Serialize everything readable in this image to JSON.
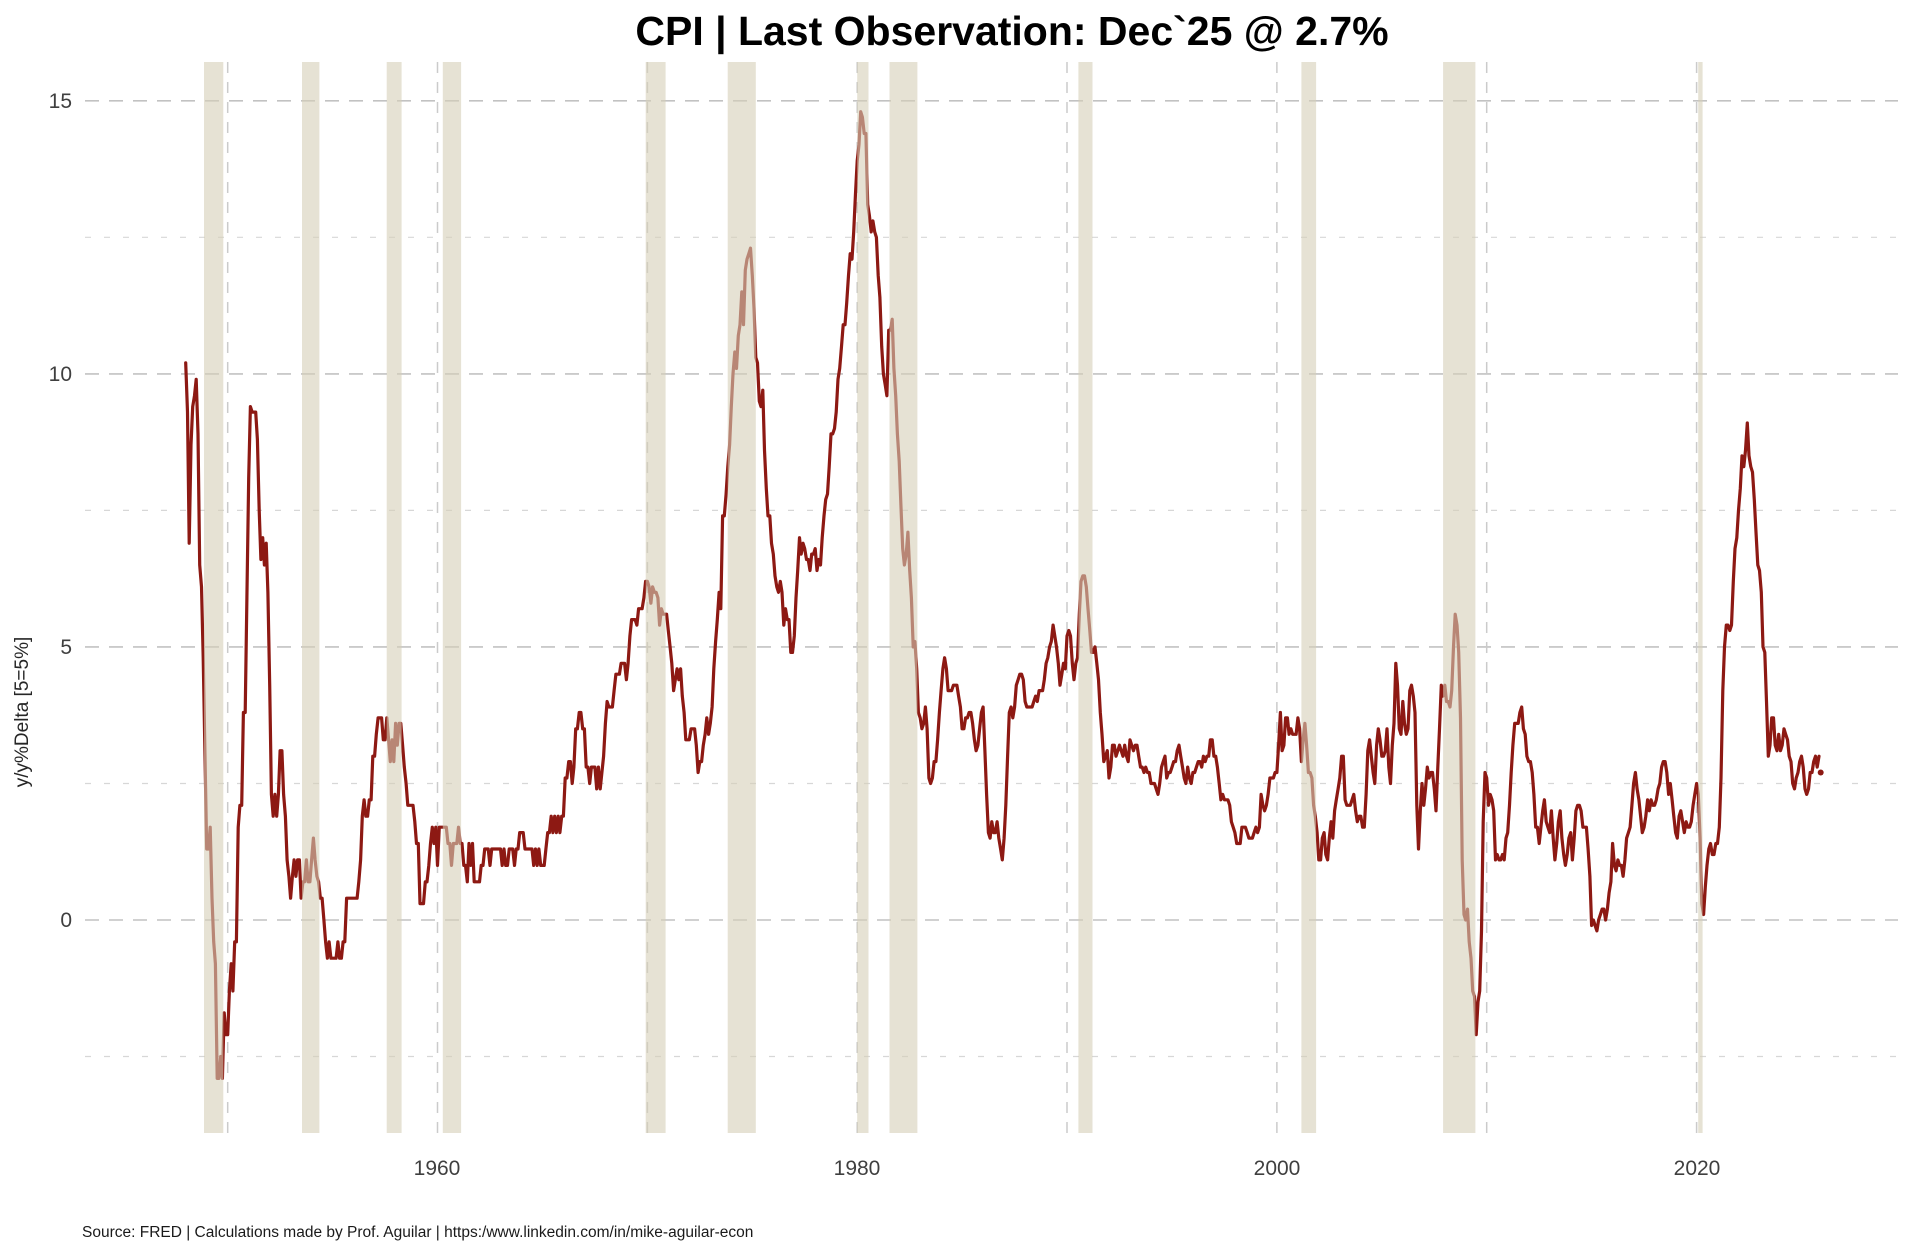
{
  "footer": {
    "source_note": "Source: FRED | Calculations made by Prof. Aguilar | https:/www.linkedin.com/in/mike-aguilar-econ"
  },
  "colors": {
    "line": "#8d1913",
    "recession_band": "#d6cfb8",
    "recession_band_opacity": 0.6,
    "grid_major": "#c2c2c2",
    "grid_minor": "#d7d7d7",
    "grid_vertical": "#cbcbcb",
    "axis_text": "#3f3f3f",
    "title_text": "#000000"
  },
  "chart_data": {
    "type": "line",
    "title": "CPI | Last Observation: Dec`25 @ 2.7%",
    "xlabel": "",
    "ylabel": "y/y%Delta [5=5%]",
    "legend": "none",
    "grid": "dashed",
    "xlim": [
      1943.2,
      2029.6
    ],
    "ylim": [
      -3.9,
      15.71
    ],
    "y_ticks": [
      0,
      5,
      10,
      15
    ],
    "y_minor_gridlines": [
      -2.5,
      2.5,
      7.5,
      12.5
    ],
    "x_ticks": [
      1960,
      1980,
      2000,
      2020
    ],
    "x_gridlines": [
      1950,
      1960,
      1970,
      1980,
      1990,
      2000,
      2010,
      2020
    ],
    "last_observation": {
      "label": "Dec`25",
      "value": 2.7
    },
    "recession_bands": [
      [
        1948.87,
        1949.79
      ],
      [
        1953.54,
        1954.37
      ],
      [
        1957.58,
        1958.29
      ],
      [
        1960.25,
        1961.12
      ],
      [
        1969.92,
        1970.87
      ],
      [
        1973.83,
        1975.17
      ],
      [
        1980.0,
        1980.54
      ],
      [
        1981.54,
        1982.87
      ],
      [
        1990.54,
        1991.21
      ],
      [
        2001.17,
        2001.87
      ],
      [
        2007.92,
        2009.46
      ],
      [
        2020.08,
        2020.29
      ]
    ],
    "series": [
      {
        "name": "CPI y/y % change",
        "start": "1948-01",
        "frequency": "monthly",
        "color": "#8d1913",
        "values": [
          10.2,
          9.3,
          6.9,
          8.7,
          9.4,
          9.6,
          9.9,
          8.9,
          6.5,
          6.1,
          4.8,
          3.0,
          1.3,
          1.3,
          1.7,
          0.4,
          -0.4,
          -0.8,
          -2.9,
          -2.9,
          -2.5,
          -2.9,
          -1.7,
          -2.1,
          -2.1,
          -1.3,
          -0.8,
          -1.3,
          -0.4,
          -0.4,
          1.7,
          2.1,
          2.1,
          3.8,
          3.8,
          5.9,
          8.1,
          9.4,
          9.3,
          9.3,
          9.3,
          8.8,
          7.5,
          6.6,
          7.0,
          6.5,
          6.9,
          6.0,
          4.3,
          2.3,
          1.9,
          2.3,
          1.9,
          2.3,
          3.1,
          3.1,
          2.3,
          1.9,
          1.1,
          0.8,
          0.4,
          0.8,
          1.1,
          0.8,
          1.1,
          1.1,
          0.4,
          0.7,
          0.7,
          1.1,
          0.7,
          0.7,
          1.1,
          1.5,
          1.1,
          0.8,
          0.7,
          0.4,
          0.4,
          0.0,
          -0.4,
          -0.7,
          -0.4,
          -0.7,
          -0.7,
          -0.7,
          -0.7,
          -0.4,
          -0.7,
          -0.7,
          -0.4,
          -0.4,
          0.4,
          0.4,
          0.4,
          0.4,
          0.4,
          0.4,
          0.4,
          0.7,
          1.1,
          1.9,
          2.2,
          1.9,
          1.9,
          2.2,
          2.2,
          3.0,
          3.0,
          3.4,
          3.7,
          3.7,
          3.7,
          3.3,
          3.3,
          3.7,
          3.3,
          2.9,
          3.3,
          2.9,
          3.6,
          3.2,
          3.6,
          3.6,
          3.2,
          2.8,
          2.5,
          2.1,
          2.1,
          2.1,
          2.1,
          1.8,
          1.4,
          1.4,
          0.3,
          0.3,
          0.3,
          0.7,
          0.7,
          1.0,
          1.4,
          1.7,
          1.4,
          1.7,
          1.0,
          1.7,
          1.7,
          1.7,
          1.7,
          1.7,
          1.4,
          1.4,
          1.0,
          1.4,
          1.4,
          1.4,
          1.7,
          1.4,
          1.4,
          1.0,
          1.0,
          0.7,
          1.4,
          1.0,
          1.4,
          0.7,
          0.7,
          0.7,
          0.7,
          1.0,
          1.0,
          1.3,
          1.3,
          1.3,
          1.0,
          1.3,
          1.3,
          1.3,
          1.3,
          1.3,
          1.3,
          1.0,
          1.3,
          1.0,
          1.0,
          1.3,
          1.3,
          1.3,
          1.0,
          1.3,
          1.3,
          1.6,
          1.6,
          1.6,
          1.3,
          1.3,
          1.3,
          1.3,
          1.3,
          1.0,
          1.3,
          1.0,
          1.3,
          1.0,
          1.0,
          1.0,
          1.3,
          1.6,
          1.6,
          1.9,
          1.6,
          1.9,
          1.6,
          1.9,
          1.6,
          1.9,
          1.9,
          2.6,
          2.6,
          2.9,
          2.9,
          2.5,
          2.8,
          3.5,
          3.5,
          3.8,
          3.8,
          3.5,
          3.5,
          2.8,
          2.8,
          2.5,
          2.8,
          2.8,
          2.8,
          2.4,
          2.8,
          2.4,
          2.7,
          3.0,
          3.6,
          4.0,
          3.9,
          3.9,
          3.9,
          4.2,
          4.5,
          4.5,
          4.5,
          4.7,
          4.7,
          4.7,
          4.4,
          4.7,
          5.2,
          5.5,
          5.5,
          5.5,
          5.4,
          5.7,
          5.7,
          5.7,
          5.9,
          6.2,
          6.2,
          6.1,
          5.8,
          6.1,
          6.0,
          6.0,
          5.9,
          5.4,
          5.7,
          5.6,
          5.6,
          5.6,
          5.3,
          5.0,
          4.7,
          4.2,
          4.4,
          4.6,
          4.4,
          4.6,
          4.1,
          3.8,
          3.3,
          3.3,
          3.3,
          3.5,
          3.5,
          3.5,
          3.2,
          2.7,
          2.9,
          2.9,
          3.2,
          3.4,
          3.7,
          3.4,
          3.6,
          3.9,
          4.6,
          5.1,
          5.5,
          6.0,
          5.7,
          7.4,
          7.4,
          7.8,
          8.3,
          8.7,
          9.4,
          10.0,
          10.4,
          10.1,
          10.7,
          10.9,
          11.5,
          10.9,
          11.9,
          12.1,
          12.2,
          12.3,
          11.8,
          11.2,
          10.3,
          10.2,
          9.5,
          9.4,
          9.7,
          8.6,
          7.9,
          7.4,
          7.4,
          6.9,
          6.7,
          6.3,
          6.1,
          6.0,
          6.2,
          6.0,
          5.4,
          5.7,
          5.5,
          5.5,
          4.9,
          4.9,
          5.2,
          5.9,
          6.4,
          7.0,
          6.7,
          6.9,
          6.8,
          6.6,
          6.6,
          6.4,
          6.7,
          6.7,
          6.8,
          6.4,
          6.6,
          6.5,
          7.0,
          7.4,
          7.7,
          7.8,
          8.3,
          8.9,
          8.9,
          9.0,
          9.3,
          9.9,
          10.1,
          10.5,
          10.9,
          10.9,
          11.3,
          11.8,
          12.2,
          12.1,
          12.6,
          13.3,
          13.9,
          14.2,
          14.8,
          14.7,
          14.4,
          14.4,
          13.1,
          12.9,
          12.6,
          12.8,
          12.6,
          12.5,
          11.8,
          11.4,
          10.5,
          10.0,
          9.8,
          9.6,
          10.8,
          10.8,
          11.0,
          10.1,
          9.6,
          8.9,
          8.4,
          7.6,
          6.8,
          6.5,
          6.7,
          7.1,
          6.4,
          5.9,
          5.0,
          5.1,
          4.6,
          3.8,
          3.7,
          3.5,
          3.6,
          3.9,
          3.5,
          2.6,
          2.5,
          2.6,
          2.9,
          2.9,
          3.3,
          3.8,
          4.2,
          4.6,
          4.8,
          4.6,
          4.2,
          4.2,
          4.2,
          4.3,
          4.3,
          4.3,
          4.1,
          3.9,
          3.5,
          3.5,
          3.7,
          3.7,
          3.8,
          3.8,
          3.6,
          3.3,
          3.1,
          3.2,
          3.5,
          3.8,
          3.9,
          3.1,
          2.3,
          1.6,
          1.5,
          1.8,
          1.6,
          1.6,
          1.8,
          1.5,
          1.3,
          1.1,
          1.5,
          2.1,
          3.0,
          3.8,
          3.9,
          3.7,
          3.9,
          4.3,
          4.4,
          4.5,
          4.5,
          4.4,
          4.0,
          3.9,
          3.9,
          3.9,
          3.9,
          4.0,
          4.1,
          4.0,
          4.2,
          4.2,
          4.2,
          4.4,
          4.7,
          4.8,
          5.0,
          5.1,
          5.4,
          5.2,
          5.0,
          4.7,
          4.3,
          4.5,
          4.7,
          4.6,
          5.2,
          5.3,
          5.2,
          4.7,
          4.4,
          4.7,
          4.8,
          5.6,
          6.2,
          6.3,
          6.3,
          6.1,
          5.7,
          5.3,
          4.9,
          4.9,
          5.0,
          4.7,
          4.4,
          3.8,
          3.4,
          2.9,
          3.0,
          3.1,
          2.6,
          2.8,
          3.2,
          3.2,
          3.0,
          3.1,
          3.2,
          3.1,
          3.0,
          3.2,
          3.0,
          2.9,
          3.3,
          3.2,
          3.1,
          3.2,
          3.2,
          3.0,
          2.8,
          2.8,
          2.7,
          2.8,
          2.7,
          2.7,
          2.5,
          2.5,
          2.5,
          2.4,
          2.3,
          2.5,
          2.8,
          2.9,
          3.0,
          2.6,
          2.7,
          2.7,
          2.8,
          2.9,
          2.9,
          3.1,
          3.2,
          3.0,
          2.8,
          2.6,
          2.5,
          2.8,
          2.6,
          2.5,
          2.7,
          2.7,
          2.8,
          2.9,
          2.9,
          2.8,
          3.0,
          2.9,
          3.0,
          3.0,
          3.3,
          3.3,
          3.0,
          3.0,
          2.8,
          2.5,
          2.2,
          2.3,
          2.2,
          2.2,
          2.2,
          2.1,
          1.8,
          1.7,
          1.6,
          1.4,
          1.4,
          1.4,
          1.7,
          1.7,
          1.7,
          1.6,
          1.5,
          1.5,
          1.5,
          1.6,
          1.7,
          1.6,
          1.7,
          2.3,
          2.1,
          2.0,
          2.1,
          2.3,
          2.6,
          2.6,
          2.6,
          2.7,
          2.7,
          3.2,
          3.8,
          3.1,
          3.2,
          3.7,
          3.7,
          3.4,
          3.5,
          3.4,
          3.4,
          3.4,
          3.7,
          3.5,
          2.9,
          3.3,
          3.6,
          3.2,
          2.7,
          2.7,
          2.6,
          2.1,
          1.9,
          1.6,
          1.1,
          1.1,
          1.5,
          1.6,
          1.2,
          1.1,
          1.5,
          1.8,
          1.5,
          2.0,
          2.2,
          2.4,
          2.6,
          3.0,
          3.0,
          2.2,
          2.1,
          2.1,
          2.1,
          2.2,
          2.3,
          2.0,
          1.8,
          1.9,
          1.9,
          1.7,
          1.7,
          2.3,
          3.1,
          3.3,
          3.0,
          2.7,
          2.5,
          3.2,
          3.5,
          3.3,
          3.0,
          3.0,
          3.1,
          3.5,
          2.8,
          2.5,
          3.2,
          3.6,
          4.7,
          4.3,
          3.5,
          3.4,
          4.0,
          3.6,
          3.4,
          3.5,
          4.2,
          4.3,
          4.1,
          3.8,
          2.1,
          1.3,
          2.0,
          2.5,
          2.1,
          2.4,
          2.8,
          2.6,
          2.7,
          2.7,
          2.4,
          2.0,
          2.8,
          3.5,
          4.3,
          4.1,
          4.3,
          4.0,
          4.0,
          3.9,
          4.2,
          5.0,
          5.6,
          5.4,
          4.9,
          3.7,
          1.1,
          0.1,
          0.0,
          0.2,
          -0.4,
          -0.7,
          -1.3,
          -1.4,
          -2.1,
          -1.5,
          -1.3,
          -0.2,
          1.8,
          2.7,
          2.6,
          2.1,
          2.3,
          2.2,
          2.0,
          1.1,
          1.2,
          1.1,
          1.1,
          1.2,
          1.1,
          1.5,
          1.6,
          2.1,
          2.7,
          3.2,
          3.6,
          3.6,
          3.6,
          3.8,
          3.9,
          3.5,
          3.4,
          3.0,
          2.9,
          2.9,
          2.7,
          2.3,
          1.7,
          1.7,
          1.4,
          1.7,
          2.0,
          2.2,
          1.8,
          1.7,
          1.6,
          2.0,
          1.5,
          1.1,
          1.4,
          1.8,
          2.0,
          1.5,
          1.2,
          1.0,
          1.2,
          1.5,
          1.6,
          1.1,
          1.5,
          2.0,
          2.1,
          2.1,
          2.0,
          1.7,
          1.7,
          1.7,
          1.3,
          0.8,
          -0.1,
          0.0,
          -0.1,
          -0.2,
          0.0,
          0.1,
          0.2,
          0.2,
          0.0,
          0.2,
          0.5,
          0.7,
          1.4,
          1.0,
          0.9,
          1.1,
          1.0,
          1.0,
          0.8,
          1.1,
          1.5,
          1.6,
          1.7,
          2.1,
          2.5,
          2.7,
          2.4,
          2.2,
          1.9,
          1.6,
          1.7,
          1.9,
          2.2,
          2.0,
          2.2,
          2.1,
          2.1,
          2.2,
          2.4,
          2.5,
          2.8,
          2.9,
          2.9,
          2.7,
          2.3,
          2.5,
          2.2,
          1.9,
          1.6,
          1.5,
          1.9,
          2.0,
          1.8,
          1.6,
          1.8,
          1.7,
          1.7,
          1.8,
          2.1,
          2.3,
          2.5,
          2.3,
          1.5,
          0.3,
          0.1,
          0.6,
          1.0,
          1.3,
          1.4,
          1.2,
          1.2,
          1.4,
          1.4,
          1.7,
          2.6,
          4.2,
          5.0,
          5.4,
          5.4,
          5.3,
          5.4,
          6.2,
          6.8,
          7.0,
          7.5,
          7.9,
          8.5,
          8.3,
          8.6,
          9.1,
          8.5,
          8.3,
          8.2,
          7.7,
          7.1,
          6.5,
          6.4,
          6.0,
          5.0,
          4.9,
          4.0,
          3.0,
          3.2,
          3.7,
          3.7,
          3.2,
          3.1,
          3.4,
          3.1,
          3.2,
          3.5,
          3.4,
          3.3,
          3.0,
          2.9,
          2.5,
          2.4,
          2.6,
          2.7,
          2.9,
          3.0,
          2.8,
          2.4,
          2.3,
          2.4,
          2.7,
          2.7,
          2.9,
          3.0,
          2.8,
          3.0,
          2.7
        ]
      }
    ]
  }
}
